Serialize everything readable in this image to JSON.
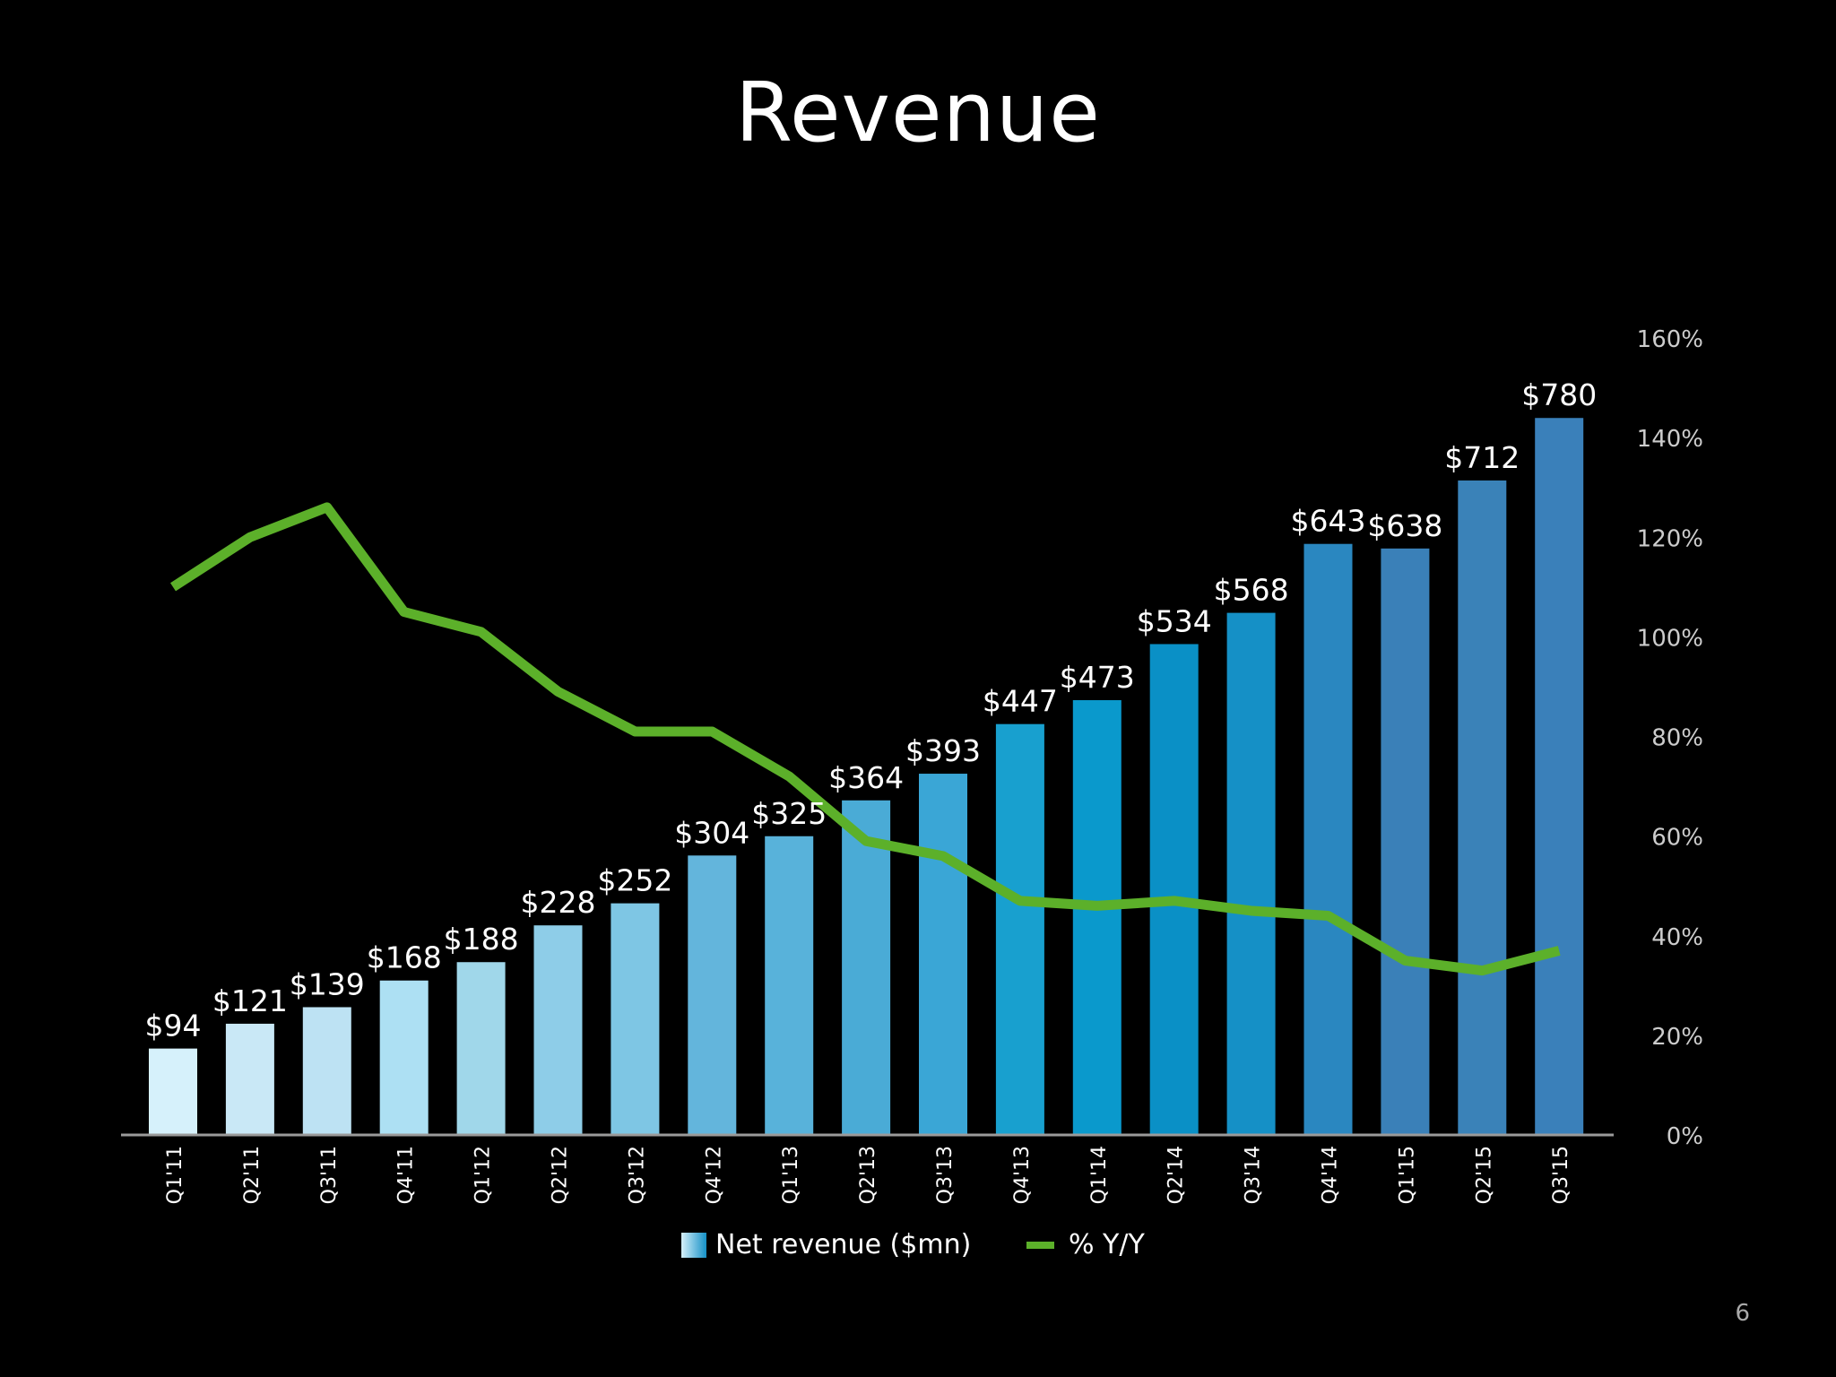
{
  "slide": {
    "title": "Revenue",
    "page_number": "6"
  },
  "chart_data": {
    "type": "bar",
    "categories": [
      "Q1'11",
      "Q2'11",
      "Q3'11",
      "Q4'11",
      "Q1'12",
      "Q2'12",
      "Q3'12",
      "Q4'12",
      "Q1'13",
      "Q2'13",
      "Q3'13",
      "Q4'13",
      "Q1'14",
      "Q2'14",
      "Q3'14",
      "Q4'14",
      "Q1'15",
      "Q2'15",
      "Q3'15"
    ],
    "series": [
      {
        "name": "Net revenue ($mn)",
        "type": "bar",
        "axis": "left",
        "values": [
          94,
          121,
          139,
          168,
          188,
          228,
          252,
          304,
          325,
          364,
          393,
          447,
          473,
          534,
          568,
          643,
          638,
          712,
          780
        ],
        "value_labels": [
          "$94",
          "$121",
          "$139",
          "$168",
          "$188",
          "$228",
          "$252",
          "$304",
          "$325",
          "$364",
          "$393",
          "$447",
          "$473",
          "$534",
          "$568",
          "$643",
          "$638",
          "$712",
          "$780"
        ],
        "colors": [
          "#d6f1fb",
          "#c9e8f6",
          "#bde2f3",
          "#ade0f3",
          "#a0d7ea",
          "#8ecde8",
          "#7ec6e4",
          "#63b5dc",
          "#58b2da",
          "#4aabd6",
          "#3aa6d6",
          "#18a0cf",
          "#0a99cc",
          "#0a90c6",
          "#1590c6",
          "#2a87c0",
          "#3a80b8",
          "#3a82b8",
          "#3a80ba"
        ]
      },
      {
        "name": "% Y/Y",
        "type": "line",
        "axis": "right",
        "values": [
          110,
          120,
          126,
          105,
          101,
          89,
          81,
          81,
          72,
          59,
          56,
          47,
          46,
          47,
          45,
          44,
          35,
          33,
          37
        ],
        "color": "#5cb02a"
      }
    ],
    "left_axis": {
      "ylim": [
        0,
        820
      ]
    },
    "right_axis": {
      "ylim": [
        0,
        160
      ],
      "ticks": [
        "0%",
        "20%",
        "40%",
        "60%",
        "80%",
        "100%",
        "120%",
        "140%",
        "160%"
      ]
    },
    "legend": {
      "placement": "bottom-center"
    },
    "grid": false,
    "colors": {
      "background": "#000000",
      "text": "#ffffff",
      "axis": "#9a9a9a",
      "tick_label": "#cccccc",
      "line": "#5cb02a"
    }
  }
}
